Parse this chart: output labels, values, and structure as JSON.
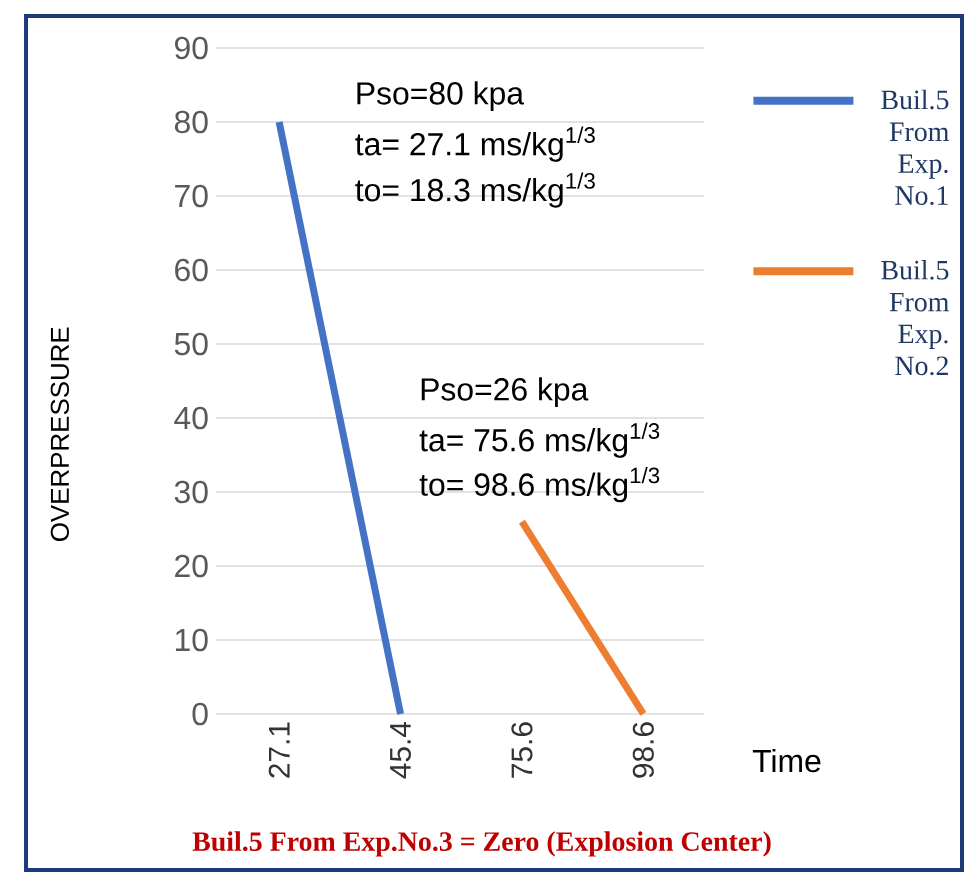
{
  "chart_data": {
    "type": "line",
    "xlabel": "Time",
    "ylabel": "OVERPRESSURE",
    "categories": [
      "27.1",
      "45.4",
      "75.6",
      "98.6"
    ],
    "series": [
      {
        "name": "Buil.5 From Exp. No.1",
        "color": "#4472c4",
        "values": [
          80,
          0,
          null,
          null
        ]
      },
      {
        "name": "Buil.5 From Exp. No.2",
        "color": "#ed7d31",
        "values": [
          null,
          null,
          26,
          0
        ]
      }
    ],
    "ylim": [
      0,
      90
    ],
    "yticks": [
      0,
      10,
      20,
      30,
      40,
      50,
      60,
      70,
      80,
      90
    ],
    "grid": "y",
    "legend": "right",
    "annotations": [
      "Pso=80 kpa",
      "ta= 27.1 ms/kg$^{1/3}$",
      "to= 18.3 ms/kg$^{1/3}$",
      "Pso=26 kpa",
      "ta= 75.6 ms/kg$^{1/3}$",
      "to= 98.6 ms/kg$^{1/3}$",
      "Buil.5 From Exp.No.3 = Zero (Explosion Center)"
    ]
  }
}
